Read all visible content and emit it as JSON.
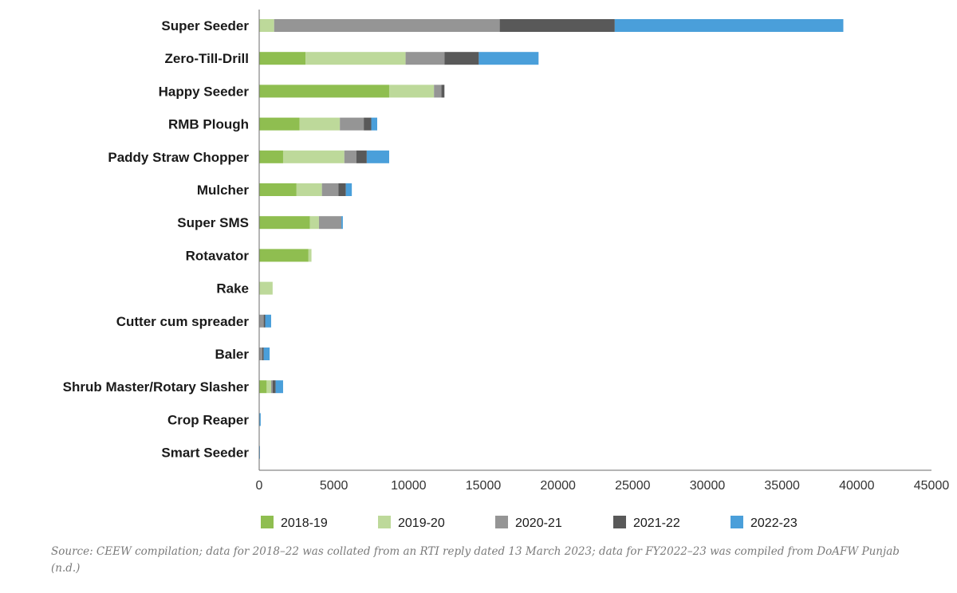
{
  "chart_data": {
    "type": "bar",
    "orientation": "horizontal",
    "stacked": true,
    "categories": [
      "Super Seeder",
      "Zero-Till-Drill",
      "Happy Seeder",
      "RMB Plough",
      "Paddy Straw Chopper",
      "Mulcher",
      "Super SMS",
      "Rotavator",
      "Rake",
      "Cutter cum spreader",
      "Baler",
      "Shrub Master/Rotary Slasher",
      "Crop Reaper",
      "Smart Seeder"
    ],
    "series": [
      {
        "name": "2018-19",
        "color": "#8fbe50",
        "values": [
          0,
          3100,
          8700,
          2700,
          1600,
          2500,
          3400,
          3300,
          0,
          0,
          0,
          500,
          0,
          0
        ]
      },
      {
        "name": "2019-20",
        "color": "#bdd99a",
        "values": [
          1000,
          6700,
          3000,
          2700,
          4100,
          1700,
          600,
          200,
          900,
          0,
          0,
          300,
          0,
          0
        ]
      },
      {
        "name": "2020-21",
        "color": "#959595",
        "values": [
          15100,
          2600,
          500,
          1600,
          800,
          1100,
          1500,
          0,
          0,
          300,
          200,
          100,
          0,
          0
        ]
      },
      {
        "name": "2021-22",
        "color": "#595959",
        "values": [
          7700,
          2300,
          200,
          500,
          700,
          500,
          0,
          0,
          0,
          100,
          100,
          200,
          0,
          0
        ]
      },
      {
        "name": "2022-23",
        "color": "#4a9fda",
        "values": [
          15300,
          4000,
          0,
          400,
          1500,
          400,
          100,
          0,
          0,
          400,
          400,
          500,
          100,
          50
        ]
      }
    ],
    "xlim": [
      0,
      45000
    ],
    "xticks": [
      0,
      5000,
      10000,
      15000,
      20000,
      25000,
      30000,
      35000,
      40000,
      45000
    ],
    "xlabel": "",
    "ylabel": "",
    "grid": false,
    "legend_position": "bottom"
  },
  "source_note": "Source: CEEW compilation; data for 2018–22 was collated from an RTI reply dated 13 March 2023; data for FY2022–23 was compiled from DoAFW Punjab (n.d.)"
}
